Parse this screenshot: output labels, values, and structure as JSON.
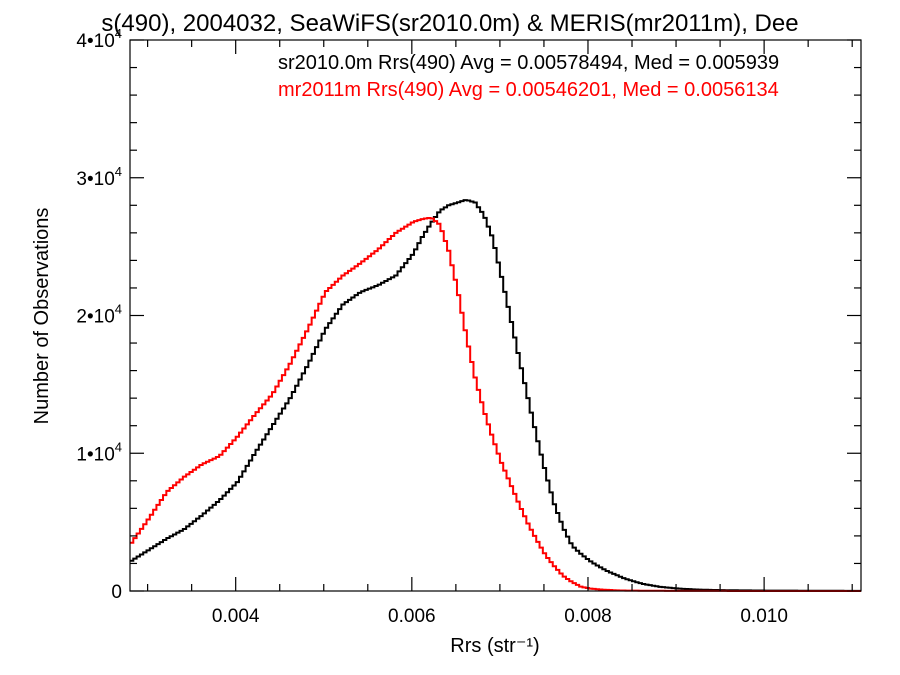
{
  "chart_data": {
    "type": "line",
    "title": "s(490), 2004032, SeaWiFS(sr2010.0m) & MERIS(mr2011m), Dee",
    "xlabel": "Rrs (str⁻¹)",
    "ylabel": "Number of Observations",
    "xlim": [
      0.0028,
      0.0111
    ],
    "ylim": [
      0,
      40000
    ],
    "x_ticks": [
      "0.004",
      "0.006",
      "0.008",
      "0.010"
    ],
    "y_ticks": [
      {
        "mantissa": "0",
        "exp": ""
      },
      {
        "mantissa": "1•10",
        "exp": "4"
      },
      {
        "mantissa": "2•10",
        "exp": "4"
      },
      {
        "mantissa": "3•10",
        "exp": "4"
      },
      {
        "mantissa": "4•10",
        "exp": "4"
      }
    ],
    "grid": false,
    "legend": "top-right",
    "annotations": [
      {
        "text": "sr2010.0m Rrs(490) Avg = 0.00578494, Med = 0.005939",
        "color": "#000000"
      },
      {
        "text": "mr2011m Rrs(490) Avg = 0.00546201, Med = 0.0056134",
        "color": "#ff0000"
      }
    ],
    "series": [
      {
        "color": "#000000",
        "x": [
          0.0028,
          0.003,
          0.0032,
          0.0034,
          0.0036,
          0.0038,
          0.004,
          0.0042,
          0.0044,
          0.0046,
          0.0048,
          0.005,
          0.0052,
          0.0054,
          0.0056,
          0.0058,
          0.006,
          0.0061,
          0.0062,
          0.0063,
          0.0064,
          0.0065,
          0.0066,
          0.0067,
          0.0068,
          0.0069,
          0.007,
          0.0071,
          0.0072,
          0.0073,
          0.0074,
          0.0075,
          0.0076,
          0.0077,
          0.0078,
          0.0079,
          0.008,
          0.0081,
          0.0082,
          0.0084,
          0.0086,
          0.0088,
          0.009,
          0.0092,
          0.0095,
          0.01,
          0.0105,
          0.0111
        ],
        "values": [
          2200,
          3000,
          3800,
          4500,
          5500,
          6600,
          7900,
          10000,
          12000,
          14000,
          16400,
          19000,
          20800,
          21700,
          22200,
          22900,
          24500,
          25700,
          26700,
          27600,
          28000,
          28200,
          28400,
          28200,
          27300,
          25600,
          22800,
          19900,
          16900,
          14000,
          11200,
          8600,
          6300,
          4600,
          3300,
          2700,
          2200,
          1800,
          1450,
          900,
          520,
          300,
          180,
          110,
          60,
          30,
          20,
          10
        ]
      },
      {
        "color": "#ff0000",
        "x": [
          0.0028,
          0.003,
          0.0032,
          0.0034,
          0.0036,
          0.0038,
          0.004,
          0.0042,
          0.0044,
          0.0046,
          0.0048,
          0.005,
          0.0052,
          0.0054,
          0.0056,
          0.0058,
          0.006,
          0.0061,
          0.0062,
          0.0063,
          0.0064,
          0.0065,
          0.0066,
          0.0067,
          0.0068,
          0.0069,
          0.007,
          0.0071,
          0.0072,
          0.0073,
          0.0074,
          0.0075,
          0.0076,
          0.0077,
          0.0078,
          0.0079,
          0.008,
          0.0081,
          0.0082,
          0.0083,
          0.0084,
          0.0086,
          0.0088,
          0.009,
          0.0095,
          0.01,
          0.0111
        ],
        "values": [
          3500,
          5300,
          7200,
          8300,
          9200,
          9800,
          11200,
          12800,
          14300,
          16500,
          19000,
          21700,
          22900,
          23800,
          24800,
          26000,
          26800,
          27000,
          27100,
          26600,
          24700,
          21900,
          18500,
          15500,
          13100,
          11100,
          9300,
          7800,
          6300,
          4900,
          3700,
          2600,
          1800,
          1100,
          650,
          320,
          180,
          120,
          80,
          50,
          30,
          20,
          15,
          10,
          5,
          3,
          0
        ]
      }
    ]
  }
}
